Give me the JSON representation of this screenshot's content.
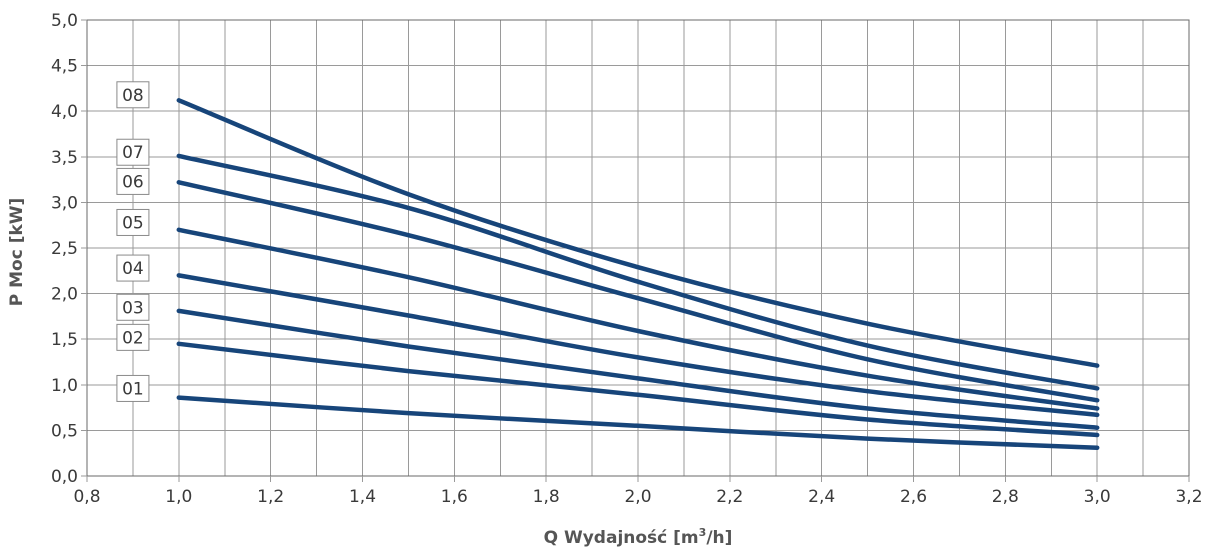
{
  "chart_data": {
    "type": "line",
    "title": "",
    "xlabel": "Q Wydajność [m³/h]",
    "xlabel_main": "Q Wydajność [m",
    "xlabel_sup": "3",
    "xlabel_tail": "/h]",
    "ylabel": "P Moc [kW]",
    "xlim": [
      0.8,
      3.2
    ],
    "ylim": [
      0.0,
      5.0
    ],
    "x_major_ticks": [
      0.8,
      1.0,
      1.2,
      1.4,
      1.6,
      1.8,
      2.0,
      2.2,
      2.4,
      2.6,
      2.8,
      3.0,
      3.2
    ],
    "x_tick_labels": [
      "0,8",
      "1,0",
      "1,2",
      "1,4",
      "1,6",
      "1,8",
      "2,0",
      "2,2",
      "2,4",
      "2,6",
      "2,8",
      "3,0",
      "3,2"
    ],
    "x_minor_grid": [
      0.9,
      1.1,
      1.3,
      1.5,
      1.7,
      1.9,
      2.1,
      2.3,
      2.5,
      2.7,
      2.9,
      3.1
    ],
    "y_major_ticks": [
      0.0,
      0.5,
      1.0,
      1.5,
      2.0,
      2.5,
      3.0,
      3.5,
      4.0,
      4.5,
      5.0
    ],
    "y_tick_labels": [
      "0,0",
      "0,5",
      "1,0",
      "1,5",
      "2,0",
      "2,5",
      "3,0",
      "3,5",
      "4,0",
      "4,5",
      "5,0"
    ],
    "grid": true,
    "line_color": "#17457a",
    "x": [
      1.0,
      1.5,
      2.0,
      2.5,
      3.0
    ],
    "series": [
      {
        "name": "01",
        "label_y": 0.96,
        "values": [
          0.86,
          0.69,
          0.55,
          0.41,
          0.31
        ]
      },
      {
        "name": "02",
        "label_y": 1.52,
        "values": [
          1.45,
          1.15,
          0.89,
          0.62,
          0.45
        ]
      },
      {
        "name": "03",
        "label_y": 1.85,
        "values": [
          1.81,
          1.42,
          1.07,
          0.74,
          0.53
        ]
      },
      {
        "name": "04",
        "label_y": 2.28,
        "values": [
          2.2,
          1.76,
          1.3,
          0.93,
          0.67
        ]
      },
      {
        "name": "05",
        "label_y": 2.78,
        "values": [
          2.7,
          2.18,
          1.59,
          1.1,
          0.74
        ]
      },
      {
        "name": "06",
        "label_y": 3.23,
        "values": [
          3.22,
          2.64,
          1.95,
          1.28,
          0.83
        ]
      },
      {
        "name": "07",
        "label_y": 3.55,
        "values": [
          3.51,
          2.94,
          2.13,
          1.43,
          0.96
        ]
      },
      {
        "name": "08",
        "label_y": 4.18,
        "values": [
          4.12,
          3.09,
          2.29,
          1.67,
          1.21
        ]
      }
    ]
  }
}
